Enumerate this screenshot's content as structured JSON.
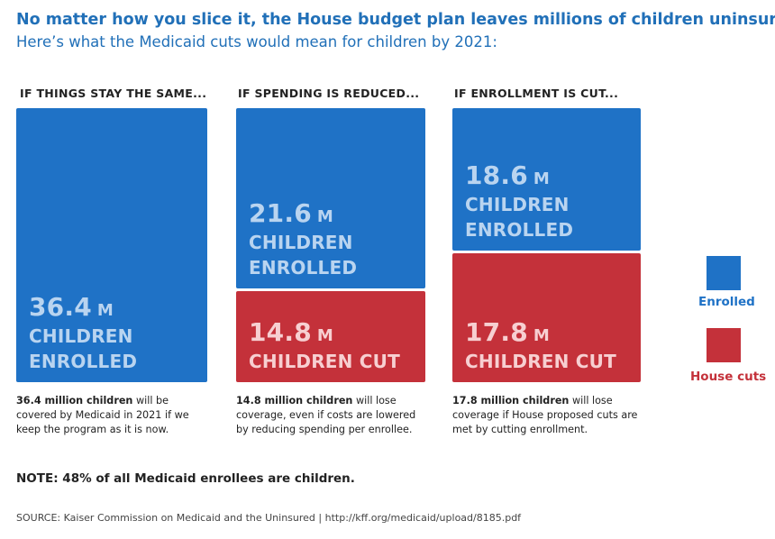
{
  "title": "No matter how you slice it, the House budget plan leaves millions of children uninsured.",
  "subtitle": "Here’s what the Medicaid cuts would mean for children by 2021:",
  "colors": {
    "enrolled": "#1f72c6",
    "cut": "#c4313a",
    "title": "#2170b8"
  },
  "chart_data": {
    "type": "bar",
    "stacked": true,
    "unit": "M",
    "categories": [
      "IF THINGS STAY THE SAME...",
      "IF SPENDING IS REDUCED...",
      "IF ENROLLMENT IS CUT..."
    ],
    "series": [
      {
        "name": "Enrolled",
        "values": [
          36.4,
          21.6,
          18.6
        ]
      },
      {
        "name": "House cuts",
        "values": [
          0,
          14.8,
          17.8
        ]
      }
    ],
    "legend_position": "right"
  },
  "blocks": {
    "c0_enrolled": {
      "num": "36.4",
      "unit": "M",
      "line1": "CHILDREN",
      "line2": "ENROLLED"
    },
    "c1_enrolled": {
      "num": "21.6",
      "unit": "M",
      "line1": "CHILDREN",
      "line2": "ENROLLED"
    },
    "c1_cut": {
      "num": "14.8",
      "unit": "M",
      "line1": "CHILDREN CUT"
    },
    "c2_enrolled": {
      "num": "18.6",
      "unit": "M",
      "line1": "CHILDREN",
      "line2": "ENROLLED"
    },
    "c2_cut": {
      "num": "17.8",
      "unit": "M",
      "line1": "CHILDREN CUT"
    }
  },
  "notes": [
    {
      "bold": "36.4 million children",
      "text": " will be covered by Medicaid in 2021 if we keep the program as it is now."
    },
    {
      "bold": "14.8 million children",
      "text": " will lose coverage, even if costs are lowered by reducing spending per enrollee."
    },
    {
      "bold": "17.8 million children",
      "text": " will lose coverage if House proposed cuts are met by cutting enrollment."
    }
  ],
  "legend": {
    "enrolled": "Enrolled",
    "cut": "House cuts"
  },
  "footer_note": "NOTE: 48% of all Medicaid enrollees are children.",
  "source": "SOURCE: Kaiser Commission on Medicaid and the Uninsured  |  http://kff.org/medicaid/upload/8185.pdf"
}
